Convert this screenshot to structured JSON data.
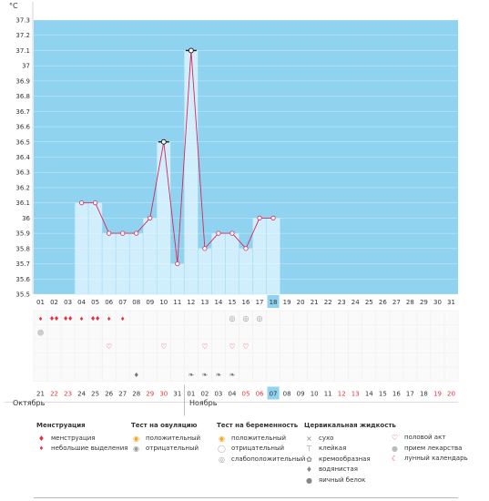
{
  "chart_data": {
    "type": "line",
    "ylabel": "°C",
    "ylim": [
      35.5,
      37.3
    ],
    "yticks": [
      "35.5",
      "35.6",
      "35.7",
      "35.8",
      "35.9",
      "36",
      "36.1",
      "36.2",
      "36.3",
      "36.4",
      "36.5",
      "36.6",
      "36.7",
      "36.8",
      "36.9",
      "37",
      "37.1",
      "37.2",
      "37.3"
    ],
    "cycle_days": [
      "01",
      "02",
      "03",
      "04",
      "05",
      "06",
      "07",
      "08",
      "09",
      "10",
      "11",
      "12",
      "13",
      "14",
      "15",
      "16",
      "17",
      "18",
      "19",
      "20",
      "21",
      "22",
      "23",
      "24",
      "25",
      "26",
      "27",
      "28",
      "29",
      "30",
      "31"
    ],
    "current_day_index": 17,
    "temperatures": [
      null,
      null,
      null,
      36.1,
      36.1,
      35.9,
      35.9,
      35.9,
      36.0,
      36.5,
      35.7,
      37.1,
      35.8,
      35.9,
      35.9,
      35.8,
      36.0,
      36.0,
      null,
      null,
      null,
      null,
      null,
      null,
      null,
      null,
      null,
      null,
      null,
      null,
      null
    ],
    "special_points": [
      9,
      11
    ],
    "grid": true,
    "dates": [
      "21",
      "22",
      "23",
      "24",
      "25",
      "26",
      "27",
      "28",
      "29",
      "30",
      "31",
      "01",
      "02",
      "03",
      "04",
      "05",
      "06",
      "07",
      "08",
      "09",
      "10",
      "11",
      "12",
      "13",
      "14",
      "15",
      "16",
      "17",
      "18",
      "19",
      "20"
    ],
    "date_colors": [
      "#333333",
      "#e8313e",
      "#e8313e",
      "#333333",
      "#333333",
      "#333333",
      "#333333",
      "#333333",
      "#e8313e",
      "#e8313e",
      "#333333",
      "#333333",
      "#333333",
      "#333333",
      "#333333",
      "#e8313e",
      "#e8313e",
      "#333333",
      "#333333",
      "#333333",
      "#333333",
      "#333333",
      "#e8313e",
      "#e8313e",
      "#333333",
      "#333333",
      "#333333",
      "#333333",
      "#333333",
      "#e8313e",
      "#e8313e"
    ],
    "months": [
      {
        "label": "Октябрь",
        "day_index": 0
      },
      {
        "label": "Ноябрь",
        "day_index": 11
      }
    ],
    "markers": {
      "menstruation": [
        0,
        1,
        2,
        3,
        4,
        5,
        6
      ],
      "menstruation_heavy": [
        1,
        2,
        4
      ],
      "drug_intake": [
        0
      ],
      "pregnancy_weak_positive": [
        14,
        15,
        16
      ],
      "intercourse": [
        5,
        9,
        12,
        14,
        15
      ],
      "fluid_watery": [
        7
      ],
      "fluid_creamy": [
        11,
        12,
        13,
        14
      ]
    }
  },
  "legend": {
    "menstruation": {
      "title": "Менструация",
      "items": [
        "менструация",
        "небольшие выделения"
      ]
    },
    "ovulation": {
      "title": "Тест на овуляцию",
      "items": [
        "положительный",
        "отрицательный"
      ]
    },
    "pregnancy": {
      "title": "Тест на беременность",
      "items": [
        "положительный",
        "отрицательный",
        "слабоположительный"
      ]
    },
    "fluid": {
      "title": "Цервикальная жидкость",
      "items": [
        "сухо",
        "клейкая",
        "кремообразная",
        "водянистая",
        "яичный белок"
      ]
    },
    "other": {
      "items": [
        "половой акт",
        "прием лекарства",
        "лунный календарь"
      ]
    }
  },
  "colors": {
    "plot_bg": "#8fd3f0",
    "bar": "#d0eefc",
    "bar_edge": "#a8dcf3",
    "line": "#d9285a",
    "point_fill": "#ffffff",
    "highlight": "#8fd3f0",
    "red": "#e8313e"
  }
}
